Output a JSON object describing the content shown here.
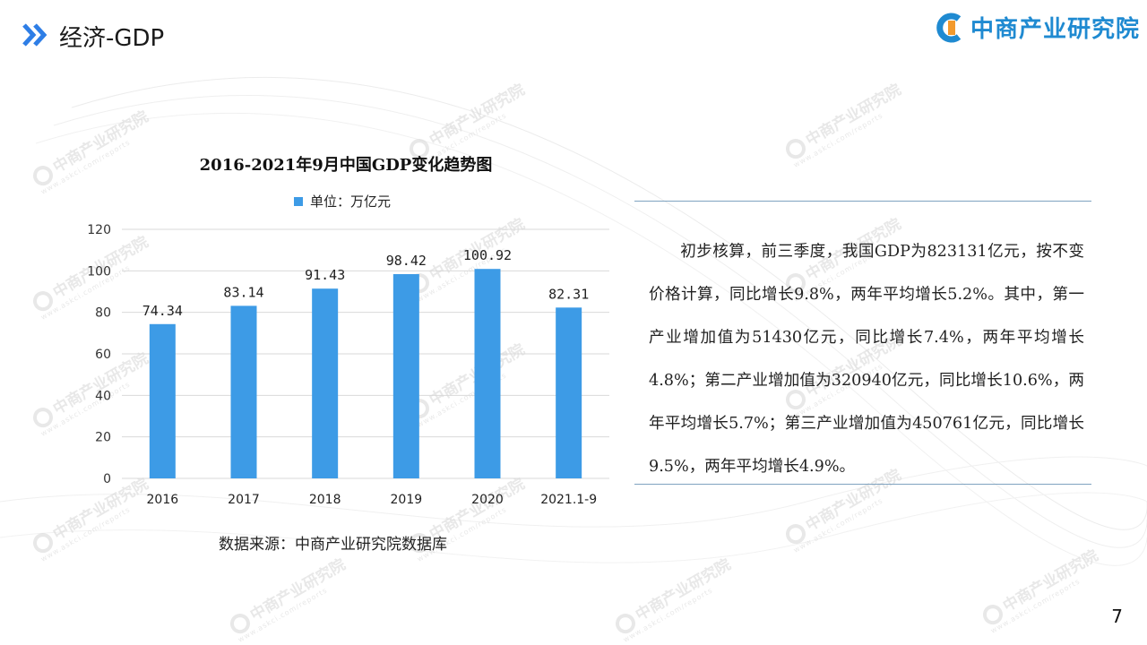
{
  "header": {
    "title": "经济-GDP"
  },
  "brand": {
    "name": "中商产业研究院"
  },
  "watermark": {
    "text": "中商产业研究院",
    "url": "www.askci.com/reports"
  },
  "colors": {
    "bar": "#3d9be6",
    "brand": "#1f8ad1",
    "accent": "#2e7ee6"
  },
  "chart_data": {
    "type": "bar",
    "title": "2016-2021年9月中国GDP变化趋势图",
    "categories": [
      "2016",
      "2017",
      "2018",
      "2019",
      "2020",
      "2021.1-9"
    ],
    "series": [
      {
        "name": "单位：万亿元",
        "values": [
          74.34,
          83.14,
          91.43,
          98.42,
          100.92,
          82.31
        ]
      }
    ],
    "value_labels": [
      "74.34",
      "83.14",
      "91.43",
      "98.42",
      "100.92",
      "82.31"
    ],
    "ylim": [
      0,
      120
    ],
    "yticks": [
      0,
      20,
      40,
      60,
      80,
      100,
      120
    ],
    "grid": true,
    "legend_position": "top-center"
  },
  "source": "数据来源：中商产业研究院数据库",
  "description": "初步核算，前三季度，我国GDP为823131亿元，按不变价格计算，同比增长9.8%，两年平均增长5.2%。其中，第一产业增加值为51430亿元，同比增长7.4%，两年平均增长4.8%；第二产业增加值为320940亿元，同比增长10.6%，两年平均增长5.7%；第三产业增加值为450761亿元，同比增长9.5%，两年平均增长4.9%。",
  "page_number": "7"
}
